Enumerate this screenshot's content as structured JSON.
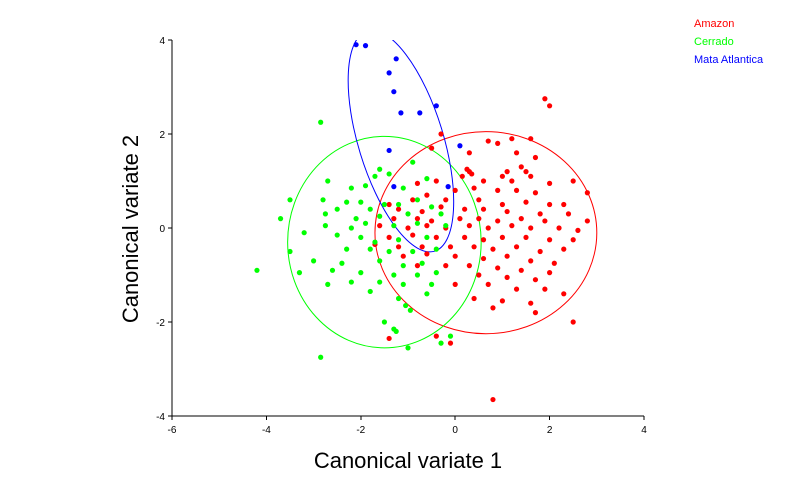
{
  "chart_data": {
    "type": "scatter",
    "title": "",
    "xlabel": "Canonical variate 1",
    "ylabel": "Canonical variate 2",
    "xlim": [
      -6,
      4
    ],
    "ylim": [
      -4,
      4
    ],
    "xticks": [
      "-6",
      "-4",
      "-2",
      "0",
      "2",
      "4"
    ],
    "yticks": [
      "-4",
      "-2",
      "0",
      "2",
      "4"
    ],
    "legend_position": "top-right",
    "series": [
      {
        "name": "Amazon",
        "color": "#ff0000",
        "ellipse": {
          "cx": 0.65,
          "cy": -0.1,
          "rx": 2.35,
          "ry": 2.15,
          "angle": 0
        },
        "points": [
          [
            1.9,
            2.75
          ],
          [
            2.0,
            2.6
          ],
          [
            -0.3,
            2.0
          ],
          [
            -0.5,
            1.7
          ],
          [
            1.2,
            1.9
          ],
          [
            1.6,
            1.9
          ],
          [
            0.3,
            1.6
          ],
          [
            0.7,
            1.85
          ],
          [
            0.9,
            1.8
          ],
          [
            1.3,
            1.6
          ],
          [
            1.4,
            1.3
          ],
          [
            1.7,
            1.5
          ],
          [
            0.25,
            1.25
          ],
          [
            0.3,
            1.2
          ],
          [
            0.35,
            1.15
          ],
          [
            0.15,
            1.1
          ],
          [
            1.0,
            1.1
          ],
          [
            1.1,
            1.2
          ],
          [
            1.5,
            1.2
          ],
          [
            2.5,
            1.0
          ],
          [
            -0.8,
            0.95
          ],
          [
            -0.4,
            1.0
          ],
          [
            0.6,
            1.0
          ],
          [
            1.2,
            1.0
          ],
          [
            1.6,
            1.1
          ],
          [
            2.0,
            0.95
          ],
          [
            2.8,
            0.75
          ],
          [
            -0.6,
            0.7
          ],
          [
            0.0,
            0.8
          ],
          [
            0.4,
            0.85
          ],
          [
            0.9,
            0.8
          ],
          [
            1.3,
            0.8
          ],
          [
            1.7,
            0.75
          ],
          [
            2.3,
            0.5
          ],
          [
            -1.4,
            0.5
          ],
          [
            -0.9,
            0.6
          ],
          [
            -0.2,
            0.6
          ],
          [
            0.5,
            0.6
          ],
          [
            1.0,
            0.5
          ],
          [
            1.5,
            0.55
          ],
          [
            2.0,
            0.5
          ],
          [
            -1.2,
            0.4
          ],
          [
            -0.7,
            0.35
          ],
          [
            -0.3,
            0.45
          ],
          [
            0.2,
            0.4
          ],
          [
            0.6,
            0.4
          ],
          [
            1.1,
            0.35
          ],
          [
            1.8,
            0.3
          ],
          [
            2.4,
            0.3
          ],
          [
            -1.3,
            0.2
          ],
          [
            -0.8,
            0.2
          ],
          [
            -0.5,
            0.15
          ],
          [
            0.1,
            0.2
          ],
          [
            0.5,
            0.2
          ],
          [
            0.9,
            0.15
          ],
          [
            1.4,
            0.2
          ],
          [
            1.9,
            0.15
          ],
          [
            2.8,
            0.15
          ],
          [
            -1.6,
            0.05
          ],
          [
            -1.0,
            0.0
          ],
          [
            -0.6,
            0.05
          ],
          [
            -0.2,
            0.0
          ],
          [
            0.3,
            0.05
          ],
          [
            0.7,
            0.0
          ],
          [
            1.2,
            0.05
          ],
          [
            1.6,
            0.0
          ],
          [
            2.2,
            0.0
          ],
          [
            2.6,
            -0.05
          ],
          [
            -1.4,
            -0.2
          ],
          [
            -0.9,
            -0.15
          ],
          [
            -0.4,
            -0.2
          ],
          [
            0.2,
            -0.2
          ],
          [
            0.6,
            -0.25
          ],
          [
            1.0,
            -0.2
          ],
          [
            1.5,
            -0.2
          ],
          [
            2.0,
            -0.25
          ],
          [
            2.5,
            -0.25
          ],
          [
            -1.7,
            -0.35
          ],
          [
            -1.2,
            -0.4
          ],
          [
            -0.7,
            -0.4
          ],
          [
            -0.1,
            -0.4
          ],
          [
            0.4,
            -0.4
          ],
          [
            0.8,
            -0.45
          ],
          [
            1.3,
            -0.4
          ],
          [
            1.8,
            -0.5
          ],
          [
            2.3,
            -0.45
          ],
          [
            -1.1,
            -0.6
          ],
          [
            -0.6,
            -0.55
          ],
          [
            0.0,
            -0.6
          ],
          [
            0.6,
            -0.65
          ],
          [
            1.1,
            -0.6
          ],
          [
            1.6,
            -0.7
          ],
          [
            2.1,
            -0.75
          ],
          [
            -0.8,
            -0.8
          ],
          [
            -0.2,
            -0.8
          ],
          [
            0.3,
            -0.8
          ],
          [
            0.9,
            -0.85
          ],
          [
            1.4,
            -0.9
          ],
          [
            2.0,
            -0.95
          ],
          [
            0.5,
            -1.0
          ],
          [
            1.1,
            -1.05
          ],
          [
            1.7,
            -1.1
          ],
          [
            0.0,
            -1.2
          ],
          [
            0.7,
            -1.2
          ],
          [
            1.3,
            -1.3
          ],
          [
            1.9,
            -1.3
          ],
          [
            0.4,
            -1.5
          ],
          [
            1.0,
            -1.55
          ],
          [
            1.6,
            -1.6
          ],
          [
            2.3,
            -1.4
          ],
          [
            1.7,
            -1.8
          ],
          [
            0.8,
            -1.7
          ],
          [
            2.5,
            -2.0
          ],
          [
            -0.1,
            -2.45
          ],
          [
            -0.4,
            -2.3
          ],
          [
            -1.4,
            -2.35
          ],
          [
            0.8,
            -3.65
          ]
        ]
      },
      {
        "name": "Cerrado",
        "color": "#00ff00",
        "ellipse": {
          "cx": -1.5,
          "cy": -0.3,
          "rx": 2.05,
          "ry": 2.25,
          "angle": 0
        },
        "points": [
          [
            -2.85,
            2.25
          ],
          [
            -0.9,
            1.4
          ],
          [
            -1.6,
            1.25
          ],
          [
            -1.7,
            1.1
          ],
          [
            -1.4,
            1.15
          ],
          [
            -2.7,
            1.0
          ],
          [
            -0.6,
            1.05
          ],
          [
            -2.2,
            0.85
          ],
          [
            -1.9,
            0.9
          ],
          [
            -1.1,
            0.85
          ],
          [
            -3.5,
            0.6
          ],
          [
            -2.8,
            0.6
          ],
          [
            -2.3,
            0.55
          ],
          [
            -2.0,
            0.55
          ],
          [
            -1.5,
            0.5
          ],
          [
            -0.8,
            0.6
          ],
          [
            -2.5,
            0.4
          ],
          [
            -1.8,
            0.4
          ],
          [
            -1.2,
            0.5
          ],
          [
            -0.5,
            0.45
          ],
          [
            -3.7,
            0.2
          ],
          [
            -2.75,
            0.3
          ],
          [
            -2.1,
            0.2
          ],
          [
            -1.6,
            0.25
          ],
          [
            -1.0,
            0.3
          ],
          [
            -0.3,
            0.3
          ],
          [
            -2.75,
            0.05
          ],
          [
            -2.2,
            0.0
          ],
          [
            -1.9,
            0.1
          ],
          [
            -1.3,
            0.05
          ],
          [
            -0.8,
            0.1
          ],
          [
            -0.2,
            0.05
          ],
          [
            -3.2,
            -0.1
          ],
          [
            -2.5,
            -0.15
          ],
          [
            -2.0,
            -0.2
          ],
          [
            -1.7,
            -0.3
          ],
          [
            -1.2,
            -0.25
          ],
          [
            -0.6,
            -0.2
          ],
          [
            -3.5,
            -0.5
          ],
          [
            -2.3,
            -0.45
          ],
          [
            -1.8,
            -0.45
          ],
          [
            -1.4,
            -0.5
          ],
          [
            -0.9,
            -0.5
          ],
          [
            -0.4,
            -0.45
          ],
          [
            -3.0,
            -0.7
          ],
          [
            -2.4,
            -0.75
          ],
          [
            -1.6,
            -0.7
          ],
          [
            -1.1,
            -0.8
          ],
          [
            -0.7,
            -0.75
          ],
          [
            -3.3,
            -0.95
          ],
          [
            -2.6,
            -0.9
          ],
          [
            -2.0,
            -0.95
          ],
          [
            -1.3,
            -1.0
          ],
          [
            -0.8,
            -1.0
          ],
          [
            -0.4,
            -0.95
          ],
          [
            -2.2,
            -1.15
          ],
          [
            -1.6,
            -1.15
          ],
          [
            -1.1,
            -1.2
          ],
          [
            -0.5,
            -1.2
          ],
          [
            -2.7,
            -1.2
          ],
          [
            -1.8,
            -1.35
          ],
          [
            -1.2,
            -1.5
          ],
          [
            -0.6,
            -1.4
          ],
          [
            -1.05,
            -1.65
          ],
          [
            -0.95,
            -1.75
          ],
          [
            -1.5,
            -2.0
          ],
          [
            -1.3,
            -2.15
          ],
          [
            -1.25,
            -2.2
          ],
          [
            -0.1,
            -2.3
          ],
          [
            -0.3,
            -2.45
          ],
          [
            -1.0,
            -2.55
          ],
          [
            -2.85,
            -2.75
          ],
          [
            -4.2,
            -0.9
          ]
        ]
      },
      {
        "name": "Mata Atlantica",
        "color": "#0000ff",
        "ellipse": {
          "cx": -1.15,
          "cy": 1.85,
          "rx": 0.9,
          "ry": 2.45,
          "angle": -17
        },
        "points": [
          [
            -2.1,
            3.9
          ],
          [
            -1.9,
            3.88
          ],
          [
            -1.25,
            3.6
          ],
          [
            -1.4,
            3.3
          ],
          [
            -1.3,
            2.9
          ],
          [
            -0.4,
            2.6
          ],
          [
            -1.15,
            2.45
          ],
          [
            -0.75,
            2.45
          ],
          [
            0.1,
            1.75
          ],
          [
            -1.4,
            1.65
          ],
          [
            -1.3,
            0.88
          ],
          [
            -0.15,
            0.88
          ]
        ]
      }
    ]
  }
}
